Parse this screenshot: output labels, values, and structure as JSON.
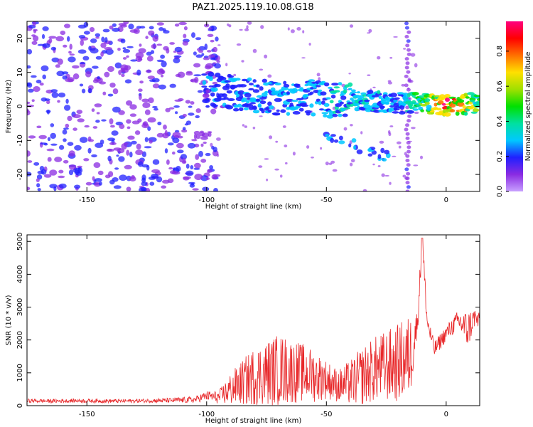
{
  "figure": {
    "title": "PAZ1.2025.119.10.08.G18"
  },
  "chart_data": [
    {
      "type": "heatmap",
      "title": "PAZ1.2025.119.10.08.G18",
      "xlabel": "Height of straight line (km)",
      "ylabel": "Frequency (Hz)",
      "xlim": [
        -175,
        14
      ],
      "ylim": [
        -25,
        25
      ],
      "x_ticks": [
        -150,
        -100,
        -50,
        0
      ],
      "y_ticks": [
        -20,
        -10,
        0,
        10,
        20
      ],
      "grid": false,
      "colorbar": {
        "label": "Normalized spectral amplitude",
        "range": [
          0.0,
          0.97
        ],
        "ticks": [
          0.0,
          0.2,
          0.4,
          0.6,
          0.8
        ],
        "colors": [
          "#c8a0ff",
          "#8a2be2",
          "#2020ff",
          "#00c8ff",
          "#00e0a0",
          "#00e000",
          "#a0e000",
          "#ffe000",
          "#ff7000",
          "#ff0000",
          "#ff0080"
        ]
      },
      "ridge": {
        "x": [
          -100,
          -90,
          -80,
          -70,
          -60,
          -50,
          -40,
          -30,
          -20,
          -10,
          0,
          14
        ],
        "frequency": [
          5,
          4,
          3,
          2.5,
          3,
          2,
          2,
          1.5,
          1,
          1,
          0.5,
          1
        ],
        "amplitude": [
          0.25,
          0.3,
          0.3,
          0.3,
          0.3,
          0.35,
          0.4,
          0.35,
          0.3,
          0.55,
          0.95,
          0.55
        ]
      }
    },
    {
      "type": "line",
      "xlabel": "Height of straight line (km)",
      "ylabel": "SNR (10 * v/v)",
      "xlim": [
        -175,
        14
      ],
      "ylim": [
        0,
        5200
      ],
      "x_ticks": [
        -150,
        -100,
        -50,
        0
      ],
      "y_ticks": [
        0,
        1000,
        2000,
        3000,
        4000,
        5000
      ],
      "grid": false,
      "series": [
        {
          "color": "#e8282a",
          "x": [
            -175,
            -165,
            -155,
            -145,
            -135,
            -125,
            -115,
            -105,
            -100,
            -95,
            -90,
            -85,
            -80,
            -75,
            -70,
            -65,
            -60,
            -55,
            -50,
            -45,
            -40,
            -35,
            -30,
            -25,
            -20,
            -15,
            -12,
            -10,
            -8,
            -5,
            0,
            5,
            9,
            12,
            14
          ],
          "values": [
            150,
            140,
            150,
            145,
            140,
            150,
            160,
            180,
            300,
            250,
            500,
            700,
            900,
            1000,
            1100,
            1050,
            1000,
            900,
            800,
            600,
            700,
            900,
            1100,
            1200,
            1300,
            1500,
            2500,
            5100,
            2600,
            1700,
            2200,
            2600,
            2300,
            2700,
            2500
          ],
          "amplitude": [
            60,
            60,
            60,
            60,
            60,
            60,
            80,
            100,
            150,
            200,
            500,
            700,
            900,
            1000,
            1100,
            1000,
            900,
            800,
            600,
            500,
            700,
            900,
            1000,
            1100,
            1200,
            1300,
            400,
            400,
            300,
            250,
            250,
            300,
            600,
            300,
            300
          ]
        }
      ]
    }
  ]
}
